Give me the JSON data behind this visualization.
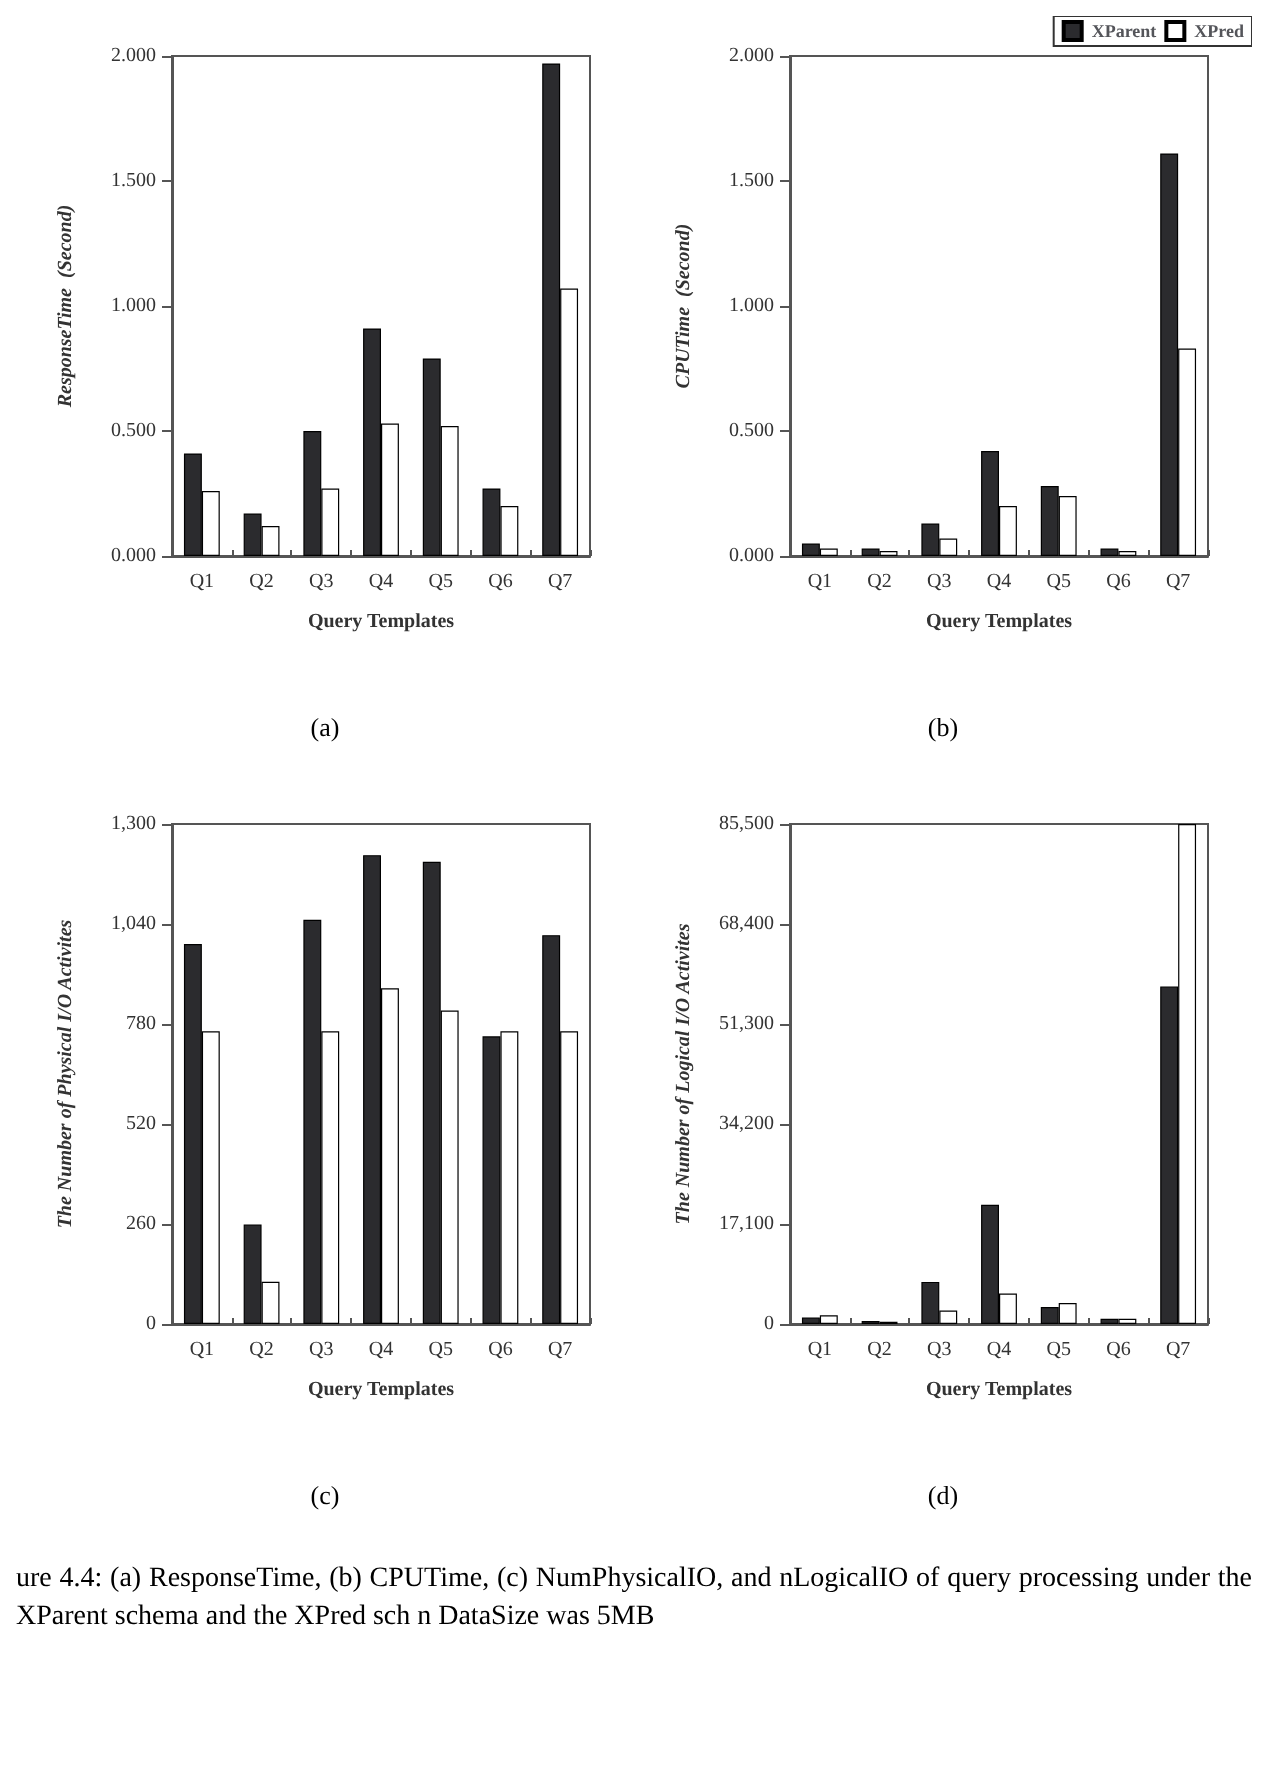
{
  "chart_data": [
    {
      "type": "bar",
      "categories": [
        "Q1",
        "Q2",
        "Q3",
        "Q4",
        "Q5",
        "Q6",
        "Q7"
      ],
      "xlabel": "Query Templates",
      "ylabel": "ResponseTime  (Second)",
      "ylim": [
        0,
        2
      ],
      "yticks": [
        {
          "value": 0,
          "label": "0.000"
        },
        {
          "value": 0.5,
          "label": "0.500"
        },
        {
          "value": 1,
          "label": "1.000"
        },
        {
          "value": 1.5,
          "label": "1.500"
        },
        {
          "value": 2,
          "label": "2.000"
        }
      ],
      "grid": false,
      "legend": false,
      "annotations": [
        "(a)"
      ],
      "series": [
        {
          "color": "#2b2b2e",
          "values": [
            0.41,
            0.17,
            0.5,
            0.91,
            0.79,
            0.27,
            1.97
          ]
        },
        {
          "color": "#ffffff",
          "values": [
            0.26,
            0.12,
            0.27,
            0.53,
            0.52,
            0.2,
            1.07
          ]
        }
      ]
    },
    {
      "type": "bar",
      "categories": [
        "Q1",
        "Q2",
        "Q3",
        "Q4",
        "Q5",
        "Q6",
        "Q7"
      ],
      "xlabel": "Query Templates",
      "ylabel": "CPUTime  (Second)",
      "ylim": [
        0,
        2
      ],
      "yticks": [
        {
          "value": 0,
          "label": "0.000"
        },
        {
          "value": 0.5,
          "label": "0.500"
        },
        {
          "value": 1,
          "label": "1.000"
        },
        {
          "value": 1.5,
          "label": "1.500"
        },
        {
          "value": 2,
          "label": "2.000"
        }
      ],
      "grid": false,
      "legend": "top right",
      "annotations": [
        "(b)"
      ],
      "series": [
        {
          "name": "XParent",
          "color": "#2b2b2e",
          "values": [
            0.05,
            0.03,
            0.13,
            0.42,
            0.28,
            0.03,
            1.61
          ]
        },
        {
          "name": "XPred",
          "color": "#ffffff",
          "values": [
            0.03,
            0.02,
            0.07,
            0.2,
            0.24,
            0.02,
            0.83
          ]
        }
      ]
    },
    {
      "type": "bar",
      "categories": [
        "Q1",
        "Q2",
        "Q3",
        "Q4",
        "Q5",
        "Q6",
        "Q7"
      ],
      "xlabel": "Query Templates",
      "ylabel": "The Number of Physical I/O Activites",
      "ylim": [
        0,
        1300
      ],
      "yticks": [
        0,
        260,
        520,
        780,
        {
          "value": 1040,
          "label": "1,040"
        },
        {
          "value": 1300,
          "label": "1,300"
        }
      ],
      "grid": false,
      "legend": false,
      "annotations": [
        "(c)"
      ],
      "series": [
        {
          "color": "#2b2b2e",
          "values": [
            988,
            259,
            1051,
            1219,
            1202,
            748,
            1011
          ]
        },
        {
          "color": "#ffffff",
          "values": [
            761,
            110,
            761,
            873,
            815,
            761,
            761
          ]
        }
      ]
    },
    {
      "type": "bar",
      "categories": [
        "Q1",
        "Q2",
        "Q3",
        "Q4",
        "Q5",
        "Q6",
        "Q7"
      ],
      "xlabel": "Query Templates",
      "ylabel": "The Number of Logical I/O Activites",
      "ylim": [
        0,
        85500
      ],
      "yticks": [
        0,
        {
          "value": 17100,
          "label": "17,100"
        },
        {
          "value": 34200,
          "label": "34,200"
        },
        {
          "value": 51300,
          "label": "51,300"
        },
        {
          "value": 68400,
          "label": "68,400"
        },
        {
          "value": 85500,
          "label": "85,500"
        }
      ],
      "grid": false,
      "legend": false,
      "annotations": [
        "(d)",
        "ure 4.4:  (a) ResponseTime,  (b) CPUTime,  (c) NumPhysicalIO,  and nLogicalIO of query processing under the XParent schema and the XPred sch n DataSize was 5MB"
      ],
      "series": [
        {
          "color": "#2b2b2e",
          "values": [
            1100,
            500,
            7200,
            20400,
            2900,
            900,
            57700
          ]
        },
        {
          "color": "#ffffff",
          "values": [
            1500,
            400,
            2300,
            5200,
            3600,
            900,
            85500
          ]
        }
      ]
    }
  ]
}
